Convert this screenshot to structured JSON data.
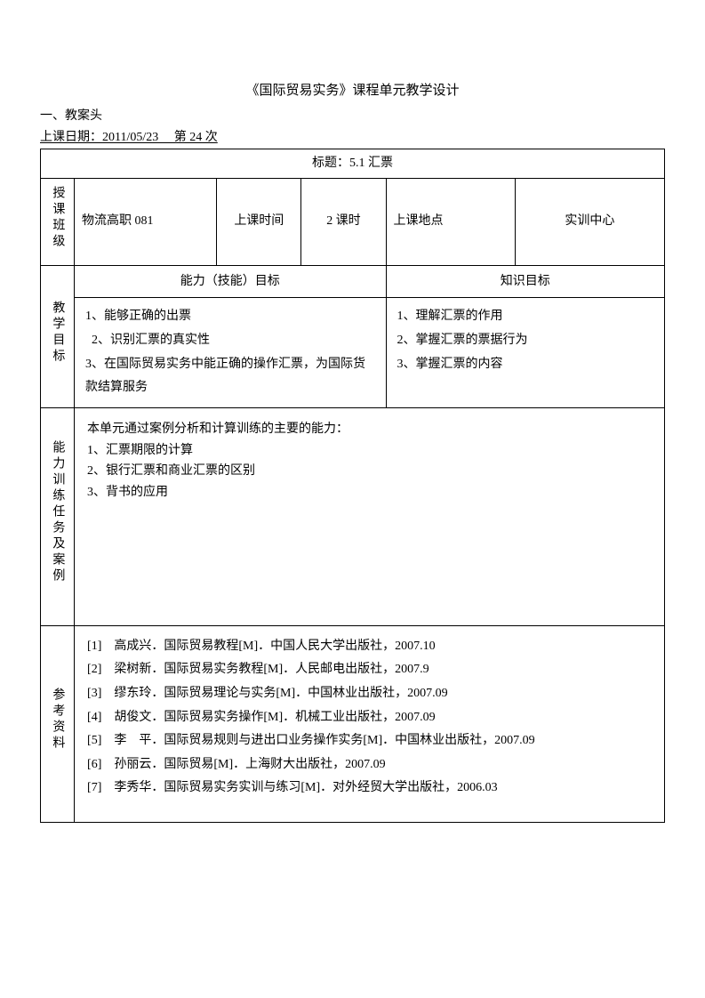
{
  "doc_title": "《国际贸易实务》课程单元教学设计",
  "section_header": "一、教案头",
  "date_line": "上课日期：2011/05/23  第 24 次",
  "title_row": "标题：5.1 汇票",
  "row1": {
    "label": "授课班级",
    "class_name": "物流高职 081",
    "time_label": "上课时间",
    "duration": "2 课时",
    "place_label": "上课地点",
    "place": "实训中心"
  },
  "goals": {
    "label": "教学目标",
    "skill_header": "能力（技能）目标",
    "knowledge_header": "知识目标",
    "skill_1": "1、能够正确的出票",
    "skill_2": "  2、识别汇票的真实性",
    "skill_3": "3、在国际贸易实务中能正确的操作汇票，为国际货款结算服务",
    "knowledge_1": "1、理解汇票的作用",
    "knowledge_2": "2、掌握汇票的票据行为",
    "knowledge_3": "3、掌握汇票的内容"
  },
  "training": {
    "label": "能力训练任务及案例",
    "intro": "本单元通过案例分析和计算训练的主要的能力：",
    "item1": "1、汇票期限的计算",
    "item2": "2、银行汇票和商业汇票的区别",
    "item3": "3、背书的应用"
  },
  "refs": {
    "label": "参考资料",
    "r1": "[1] 高成兴．国际贸易教程[M]．中国人民大学出版社，2007.10",
    "r2": "[2] 梁树新．国际贸易实务教程[M]．人民邮电出版社，2007.9",
    "r3": "[3] 缪东玲．国际贸易理论与实务[M]．中国林业出版社，2007.09",
    "r4": "[4] 胡俊文．国际贸易实务操作[M]．机械工业出版社，2007.09",
    "r5": "[5] 李 平．国际贸易规则与进出口业务操作实务[M]．中国林业出版社，2007.09",
    "r6": "[6] 孙丽云．国际贸易[M]．上海财大出版社，2007.09",
    "r7": "[7] 李秀华．国际贸易实务实训与练习[M]．对外经贸大学出版社，2006.03"
  }
}
